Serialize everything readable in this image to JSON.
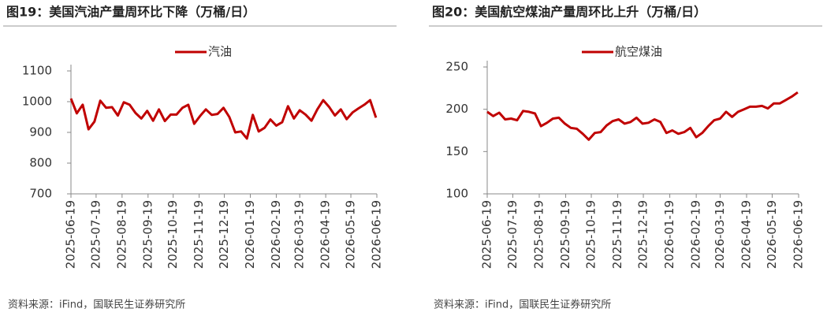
{
  "chart_data": [
    {
      "type": "line",
      "title": "图19：美国汽油产量周环比下降（万桶/日）",
      "source": "资料来源：iFind，国联民生证券研究所",
      "x": [
        "2025-06-19",
        "2025-06-26",
        "2025-07-03",
        "2025-07-10",
        "2025-07-17",
        "2025-07-24",
        "2025-07-31",
        "2025-08-07",
        "2025-08-14",
        "2025-08-21",
        "2025-08-28",
        "2025-09-04",
        "2025-09-11",
        "2025-09-18",
        "2025-09-25",
        "2025-10-02",
        "2025-10-09",
        "2025-10-16",
        "2025-10-23",
        "2025-10-30",
        "2025-11-06",
        "2025-11-13",
        "2025-11-20",
        "2025-11-27",
        "2025-12-04",
        "2025-12-11",
        "2025-12-18",
        "2025-12-25",
        "2026-01-01",
        "2026-01-08",
        "2026-01-15",
        "2026-01-22",
        "2026-01-29",
        "2026-02-05",
        "2026-02-12",
        "2026-02-19",
        "2026-02-26",
        "2026-03-05",
        "2026-03-12",
        "2026-03-19",
        "2026-03-26",
        "2026-04-02",
        "2026-04-09",
        "2026-04-16",
        "2026-04-23",
        "2026-04-30",
        "2026-05-07",
        "2026-05-14",
        "2026-05-21",
        "2026-05-28",
        "2026-06-04",
        "2026-06-11",
        "2026-06-18"
      ],
      "series": [
        {
          "name": "汽油",
          "color": "#c00000",
          "values": [
            1010,
            962,
            990,
            910,
            935,
            1003,
            980,
            982,
            955,
            998,
            990,
            963,
            945,
            970,
            938,
            975,
            937,
            958,
            958,
            980,
            990,
            928,
            953,
            975,
            957,
            960,
            980,
            950,
            900,
            903,
            880,
            957,
            903,
            915,
            942,
            922,
            933,
            985,
            945,
            972,
            958,
            938,
            975,
            1005,
            983,
            955,
            975,
            943,
            965,
            978,
            990,
            1005,
            948
          ]
        }
      ],
      "ylim": [
        700,
        1100
      ],
      "yticks": [
        700,
        800,
        900,
        1000,
        1100
      ],
      "xlim": [
        "2025-06-19",
        "2026-06-19"
      ],
      "xticks": [
        "2025-06-19",
        "2025-07-19",
        "2025-08-19",
        "2025-09-19",
        "2025-10-19",
        "2025-11-19",
        "2025-12-19",
        "2026-01-19",
        "2026-02-19",
        "2026-03-19",
        "2026-04-19",
        "2026-05-19",
        "2026-06-19"
      ],
      "legend": "top"
    },
    {
      "type": "line",
      "title": "图20：美国航空煤油产量周环比上升（万桶/日）",
      "source": "资料来源：iFind，国联民生证券研究所",
      "x": [
        "2025-06-19",
        "2025-06-26",
        "2025-07-03",
        "2025-07-10",
        "2025-07-17",
        "2025-07-24",
        "2025-07-31",
        "2025-08-07",
        "2025-08-14",
        "2025-08-21",
        "2025-08-28",
        "2025-09-04",
        "2025-09-11",
        "2025-09-18",
        "2025-09-25",
        "2025-10-02",
        "2025-10-09",
        "2025-10-16",
        "2025-10-23",
        "2025-10-30",
        "2025-11-06",
        "2025-11-13",
        "2025-11-20",
        "2025-11-27",
        "2025-12-04",
        "2025-12-11",
        "2025-12-18",
        "2025-12-25",
        "2026-01-01",
        "2026-01-08",
        "2026-01-15",
        "2026-01-22",
        "2026-01-29",
        "2026-02-05",
        "2026-02-12",
        "2026-02-19",
        "2026-02-26",
        "2026-03-05",
        "2026-03-12",
        "2026-03-19",
        "2026-03-26",
        "2026-04-02",
        "2026-04-09",
        "2026-04-16",
        "2026-04-23",
        "2026-04-30",
        "2026-05-07",
        "2026-05-14",
        "2026-05-21",
        "2026-05-28",
        "2026-06-04",
        "2026-06-11",
        "2026-06-18"
      ],
      "series": [
        {
          "name": "航空煤油",
          "color": "#c00000",
          "values": [
            197,
            192,
            196,
            188,
            189,
            187,
            198,
            197,
            195,
            180,
            184,
            189,
            190,
            183,
            178,
            177,
            171,
            164,
            172,
            173,
            181,
            186,
            188,
            183,
            185,
            190,
            183,
            184,
            188,
            185,
            172,
            175,
            171,
            173,
            178,
            167,
            172,
            180,
            187,
            189,
            197,
            191,
            197,
            200,
            203,
            203,
            204,
            201,
            207,
            207,
            211,
            215,
            220
          ]
        }
      ],
      "ylim": [
        100,
        250
      ],
      "yticks": [
        100,
        150,
        200,
        250
      ],
      "xlim": [
        "2025-06-19",
        "2026-06-19"
      ],
      "xticks": [
        "2025-06-19",
        "2025-07-19",
        "2025-08-19",
        "2025-09-19",
        "2025-10-19",
        "2025-11-19",
        "2025-12-19",
        "2026-01-19",
        "2026-02-19",
        "2026-03-19",
        "2026-04-19",
        "2026-05-19",
        "2026-06-19"
      ],
      "legend": "top"
    }
  ]
}
